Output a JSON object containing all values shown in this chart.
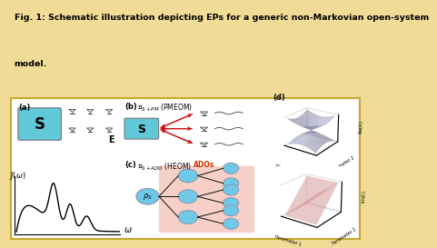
{
  "bg_color": "#f0dc96",
  "white": "#ffffff",
  "title_text1": "Fig. 1: Schematic illustration depicting EPs for a generic non-Markovian open-system",
  "title_text2": "model.",
  "title_fontsize": 6.8,
  "s_box_color": "#60c8d8",
  "pink_bg": "#f2b8a8",
  "arrow_red": "#cc1111",
  "node_blue": "#70c8e8",
  "surface_blue": "#9999cc",
  "surface_red": "#ee9999",
  "panel_border": "#c8a830",
  "goblet_fill": "#e8e8e8",
  "goblet_edge": "#444444",
  "wave_color": "#444444"
}
